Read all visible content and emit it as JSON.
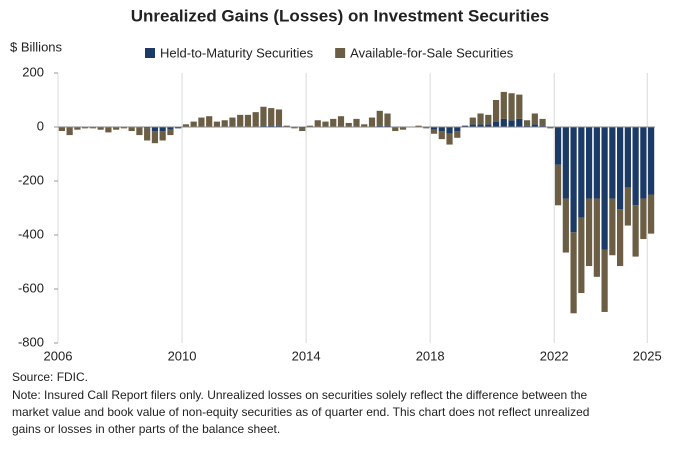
{
  "chart_data": {
    "type": "bar",
    "title": "Unrealized Gains (Losses) on Investment Securities",
    "y_label": "$ Billions",
    "source": "Source: FDIC.",
    "note": [
      "Note: Insured Call Report filers only. Unrealized losses on securities solely reflect the difference between the",
      "market value and book value of non-equity securities as of quarter end. This chart does not reflect unrealized",
      "gains or losses in other parts of the balance sheet."
    ],
    "stacked": true,
    "x": [
      2006,
      2006.25,
      2006.5,
      2006.75,
      2007,
      2007.25,
      2007.5,
      2007.75,
      2008,
      2008.25,
      2008.5,
      2008.75,
      2009,
      2009.25,
      2009.5,
      2009.75,
      2010,
      2010.25,
      2010.5,
      2010.75,
      2011,
      2011.25,
      2011.5,
      2011.75,
      2012,
      2012.25,
      2012.5,
      2012.75,
      2013,
      2013.25,
      2013.5,
      2013.75,
      2014,
      2014.25,
      2014.5,
      2014.75,
      2015,
      2015.25,
      2015.5,
      2015.75,
      2016,
      2016.25,
      2016.5,
      2016.75,
      2017,
      2017.25,
      2017.5,
      2017.75,
      2018,
      2018.25,
      2018.5,
      2018.75,
      2019,
      2019.25,
      2019.5,
      2019.75,
      2020,
      2020.25,
      2020.5,
      2020.75,
      2021,
      2021.25,
      2021.5,
      2021.75,
      2022,
      2022.25,
      2022.5,
      2022.75,
      2023,
      2023.25,
      2023.5,
      2023.75,
      2024,
      2024.25,
      2024.5,
      2024.75,
      2025
    ],
    "series": [
      {
        "name": "Held-to-Maturity Securities",
        "color": "#1c3a66",
        "values": [
          0,
          0,
          0,
          0,
          0,
          0,
          0,
          0,
          0,
          0,
          0,
          -5,
          -15,
          -15,
          -10,
          -5,
          0,
          0,
          0,
          0,
          0,
          0,
          0,
          0,
          0,
          0,
          5,
          5,
          5,
          0,
          0,
          -5,
          0,
          0,
          0,
          0,
          0,
          0,
          0,
          0,
          0,
          5,
          5,
          0,
          0,
          0,
          0,
          0,
          -10,
          -15,
          -25,
          -15,
          5,
          10,
          10,
          10,
          20,
          30,
          25,
          30,
          5,
          10,
          5,
          0,
          -140,
          -265,
          -390,
          -335,
          -265,
          -265,
          -455,
          -265,
          -305,
          -225,
          -290,
          -265,
          -250
        ]
      },
      {
        "name": "Available-for-Sale Securities",
        "color": "#6b5e45",
        "values": [
          -15,
          -30,
          -10,
          -5,
          -5,
          -10,
          -20,
          -10,
          -5,
          -15,
          -30,
          -45,
          -45,
          -35,
          -20,
          0,
          10,
          20,
          35,
          40,
          20,
          25,
          35,
          45,
          45,
          55,
          70,
          65,
          60,
          5,
          -5,
          -10,
          5,
          25,
          20,
          30,
          40,
          15,
          30,
          10,
          35,
          55,
          45,
          -15,
          -10,
          0,
          5,
          -5,
          -15,
          -30,
          -40,
          -25,
          0,
          25,
          40,
          35,
          80,
          100,
          100,
          90,
          20,
          40,
          25,
          -5,
          -150,
          -200,
          -300,
          -280,
          -250,
          -290,
          -230,
          -210,
          -210,
          -140,
          -190,
          -150,
          -145
        ]
      }
    ],
    "xlim": [
      2006,
      2025.25
    ],
    "xticks": [
      2006,
      2010,
      2014,
      2018,
      2022,
      2025
    ],
    "ylim": [
      -800,
      200
    ],
    "yticks": [
      -800,
      -600,
      -400,
      -200,
      0,
      200
    ],
    "grid": true
  }
}
